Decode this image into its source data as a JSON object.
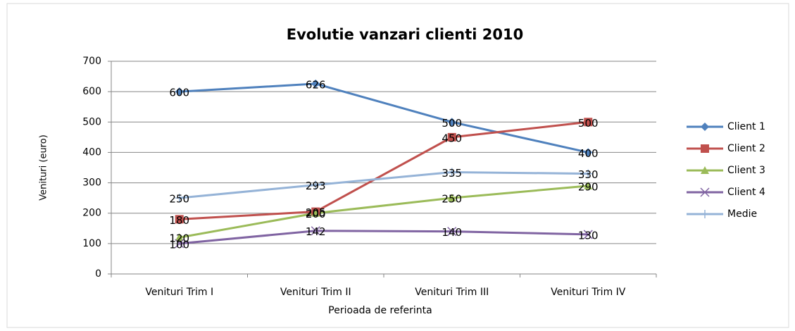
{
  "chart_data": {
    "type": "line",
    "title": "Evolutie vanzari clienti 2010",
    "xlabel": "Perioada de referinta",
    "ylabel": "Venituri (euro)",
    "categories": [
      "Venituri Trim I",
      "Venituri Trim II",
      "Venituri Trim III",
      "Venituri Trim IV"
    ],
    "series": [
      {
        "name": "Client 1",
        "color": "#4f81bd",
        "marker": "diamond",
        "values": [
          600,
          626,
          500,
          400
        ]
      },
      {
        "name": "Client 2",
        "color": "#c0504d",
        "marker": "square",
        "values": [
          180,
          205,
          450,
          500
        ]
      },
      {
        "name": "Client 3",
        "color": "#9bbb59",
        "marker": "triangle",
        "values": [
          120,
          200,
          250,
          290
        ]
      },
      {
        "name": "Client 4",
        "color": "#8064a2",
        "marker": "x",
        "values": [
          100,
          142,
          140,
          130
        ]
      },
      {
        "name": "Medie",
        "color": "#95b3d7",
        "marker": "plus",
        "values": [
          250,
          293,
          335,
          330
        ]
      }
    ],
    "ylim": [
      0,
      700
    ],
    "yticks": [
      0,
      100,
      200,
      300,
      400,
      500,
      600,
      700
    ],
    "grid": true,
    "legend": "right",
    "data_labels": true
  }
}
